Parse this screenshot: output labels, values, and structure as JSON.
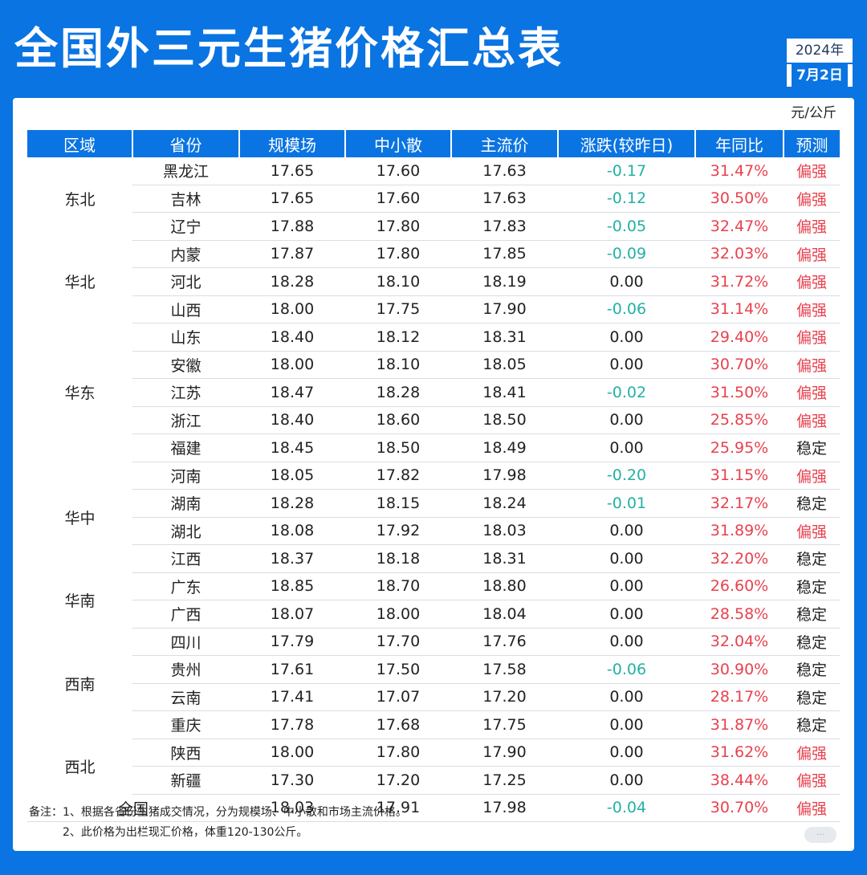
{
  "title": "全国外三元生猪价格汇总表",
  "date": {
    "year": "2024年",
    "month_day": "7月2日"
  },
  "unit": "元/公斤",
  "headers": [
    "区域",
    "省份",
    "规模场",
    "中小散",
    "主流价",
    "涨跌(较昨日)",
    "年同比",
    "预测"
  ],
  "regions": [
    {
      "name": "东北",
      "rows": [
        {
          "province": "黑龙江",
          "large": "17.65",
          "small": "17.60",
          "main": "17.63",
          "change": "-0.17",
          "yoy": "31.47%",
          "forecast": "偏强"
        },
        {
          "province": "吉林",
          "large": "17.65",
          "small": "17.60",
          "main": "17.63",
          "change": "-0.12",
          "yoy": "30.50%",
          "forecast": "偏强"
        },
        {
          "province": "辽宁",
          "large": "17.88",
          "small": "17.80",
          "main": "17.83",
          "change": "-0.05",
          "yoy": "32.47%",
          "forecast": "偏强"
        }
      ]
    },
    {
      "name": "华北",
      "rows": [
        {
          "province": "内蒙",
          "large": "17.87",
          "small": "17.80",
          "main": "17.85",
          "change": "-0.09",
          "yoy": "32.03%",
          "forecast": "偏强"
        },
        {
          "province": "河北",
          "large": "18.28",
          "small": "18.10",
          "main": "18.19",
          "change": "0.00",
          "yoy": "31.72%",
          "forecast": "偏强"
        },
        {
          "province": "山西",
          "large": "18.00",
          "small": "17.75",
          "main": "17.90",
          "change": "-0.06",
          "yoy": "31.14%",
          "forecast": "偏强"
        }
      ]
    },
    {
      "name": "华东",
      "rows": [
        {
          "province": "山东",
          "large": "18.40",
          "small": "18.12",
          "main": "18.31",
          "change": "0.00",
          "yoy": "29.40%",
          "forecast": "偏强"
        },
        {
          "province": "安徽",
          "large": "18.00",
          "small": "18.10",
          "main": "18.05",
          "change": "0.00",
          "yoy": "30.70%",
          "forecast": "偏强"
        },
        {
          "province": "江苏",
          "large": "18.47",
          "small": "18.28",
          "main": "18.41",
          "change": "-0.02",
          "yoy": "31.50%",
          "forecast": "偏强"
        },
        {
          "province": "浙江",
          "large": "18.40",
          "small": "18.60",
          "main": "18.50",
          "change": "0.00",
          "yoy": "25.85%",
          "forecast": "偏强"
        },
        {
          "province": "福建",
          "large": "18.45",
          "small": "18.50",
          "main": "18.49",
          "change": "0.00",
          "yoy": "25.95%",
          "forecast": "稳定"
        }
      ]
    },
    {
      "name": "华中",
      "rows": [
        {
          "province": "河南",
          "large": "18.05",
          "small": "17.82",
          "main": "17.98",
          "change": "-0.20",
          "yoy": "31.15%",
          "forecast": "偏强"
        },
        {
          "province": "湖南",
          "large": "18.28",
          "small": "18.15",
          "main": "18.24",
          "change": "-0.01",
          "yoy": "32.17%",
          "forecast": "稳定"
        },
        {
          "province": "湖北",
          "large": "18.08",
          "small": "17.92",
          "main": "18.03",
          "change": "0.00",
          "yoy": "31.89%",
          "forecast": "偏强"
        },
        {
          "province": "江西",
          "large": "18.37",
          "small": "18.18",
          "main": "18.31",
          "change": "0.00",
          "yoy": "32.20%",
          "forecast": "稳定"
        }
      ]
    },
    {
      "name": "华南",
      "rows": [
        {
          "province": "广东",
          "large": "18.85",
          "small": "18.70",
          "main": "18.80",
          "change": "0.00",
          "yoy": "26.60%",
          "forecast": "稳定"
        },
        {
          "province": "广西",
          "large": "18.07",
          "small": "18.00",
          "main": "18.04",
          "change": "0.00",
          "yoy": "28.58%",
          "forecast": "稳定"
        }
      ]
    },
    {
      "name": "西南",
      "rows": [
        {
          "province": "四川",
          "large": "17.79",
          "small": "17.70",
          "main": "17.76",
          "change": "0.00",
          "yoy": "32.04%",
          "forecast": "稳定"
        },
        {
          "province": "贵州",
          "large": "17.61",
          "small": "17.50",
          "main": "17.58",
          "change": "-0.06",
          "yoy": "30.90%",
          "forecast": "稳定"
        },
        {
          "province": "云南",
          "large": "17.41",
          "small": "17.07",
          "main": "17.20",
          "change": "0.00",
          "yoy": "28.17%",
          "forecast": "稳定"
        },
        {
          "province": "重庆",
          "large": "17.78",
          "small": "17.68",
          "main": "17.75",
          "change": "0.00",
          "yoy": "31.87%",
          "forecast": "稳定"
        }
      ]
    },
    {
      "name": "西北",
      "rows": [
        {
          "province": "陕西",
          "large": "18.00",
          "small": "17.80",
          "main": "17.90",
          "change": "0.00",
          "yoy": "31.62%",
          "forecast": "偏强"
        },
        {
          "province": "新疆",
          "large": "17.30",
          "small": "17.20",
          "main": "17.25",
          "change": "0.00",
          "yoy": "38.44%",
          "forecast": "偏强"
        }
      ]
    }
  ],
  "national": {
    "label": "全国",
    "large": "18.03",
    "small": "17.91",
    "main": "17.98",
    "change": "-0.04",
    "yoy": "30.70%",
    "forecast": "偏强"
  },
  "notes": [
    "备注：1、根据各省份生猪成交情况，分为规模场、中小散和市场主流价格。",
    "2、此价格为出栏现汇价格，体重120-130公斤。"
  ],
  "colors": {
    "brand_blue": "#0a74e2",
    "down_teal": "#22b1a4",
    "up_red": "#e8414e"
  }
}
